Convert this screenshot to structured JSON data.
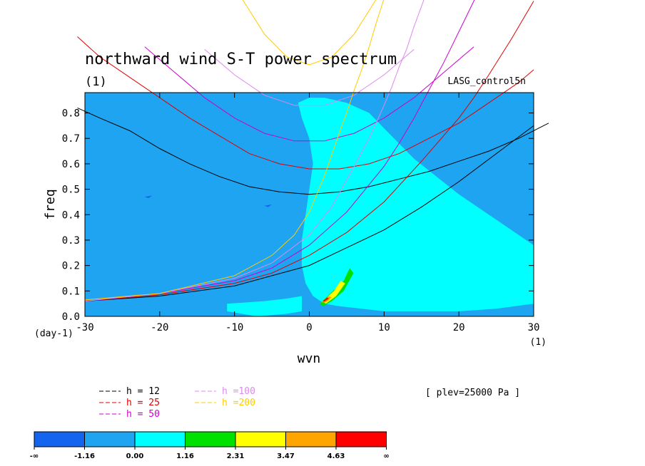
{
  "chart_data": {
    "type": "heatmap",
    "title": "northward wind S-T power spectrum",
    "subtitle": "(1)",
    "source_label": "LASG_control5n",
    "level_label": "[ plev=25000 Pa ]",
    "xlabel": "wvn",
    "ylabel": "freq",
    "x_unit_label": "(1)",
    "y_unit_label": "(day-1)",
    "xlim": [
      -30,
      30
    ],
    "ylim": [
      0,
      0.88
    ],
    "x_ticks": [
      {
        "v": -30,
        "t": "-30"
      },
      {
        "v": -20,
        "t": "-20"
      },
      {
        "v": -10,
        "t": "-10"
      },
      {
        "v": 0,
        "t": "0"
      },
      {
        "v": 10,
        "t": "10"
      },
      {
        "v": 20,
        "t": "20"
      },
      {
        "v": 30,
        "t": "30"
      }
    ],
    "y_ticks": [
      {
        "v": 0.0,
        "t": "0.0"
      },
      {
        "v": 0.1,
        "t": "0.1"
      },
      {
        "v": 0.2,
        "t": "0.2"
      },
      {
        "v": 0.3,
        "t": "0.3"
      },
      {
        "v": 0.4,
        "t": "0.4"
      },
      {
        "v": 0.5,
        "t": "0.5"
      },
      {
        "v": 0.6,
        "t": "0.6"
      },
      {
        "v": 0.7,
        "t": "0.7"
      },
      {
        "v": 0.8,
        "t": "0.8"
      }
    ],
    "background_color": "#1ea4f0",
    "colorbar": {
      "labels": [
        "-∞",
        "-1.16",
        "0.00",
        "1.16",
        "2.31",
        "3.47",
        "4.63",
        "∞"
      ],
      "colors": [
        "#1464f0",
        "#1ea4f0",
        "#00ffff",
        "#00e100",
        "#ffff00",
        "#ffa500",
        "#ff0000"
      ]
    },
    "contour_regions": [
      {
        "level": 2,
        "points": [
          [
            -1.5,
            0.84
          ],
          [
            0,
            0.86
          ],
          [
            2,
            0.86
          ],
          [
            5,
            0.84
          ],
          [
            8,
            0.8
          ],
          [
            10,
            0.74
          ],
          [
            12,
            0.68
          ],
          [
            14,
            0.62
          ],
          [
            17,
            0.55
          ],
          [
            20,
            0.48
          ],
          [
            23,
            0.42
          ],
          [
            26,
            0.36
          ],
          [
            29,
            0.3
          ],
          [
            30,
            0.28
          ],
          [
            30,
            0.05
          ],
          [
            25,
            0.03
          ],
          [
            20,
            0.02
          ],
          [
            14,
            0.02
          ],
          [
            10,
            0.02
          ],
          [
            7,
            0.03
          ],
          [
            4,
            0.04
          ],
          [
            2,
            0.05
          ],
          [
            0.5,
            0.08
          ],
          [
            -0.5,
            0.13
          ],
          [
            -1,
            0.2
          ],
          [
            -1,
            0.3
          ],
          [
            -0.5,
            0.4
          ],
          [
            0,
            0.5
          ],
          [
            0.5,
            0.6
          ],
          [
            0,
            0.7
          ],
          [
            -1,
            0.78
          ]
        ]
      },
      {
        "level": 2,
        "points": [
          [
            -11,
            0.05
          ],
          [
            -6,
            0.06
          ],
          [
            -3,
            0.07
          ],
          [
            -1,
            0.08
          ],
          [
            -1,
            0.02
          ],
          [
            -3,
            0.01
          ],
          [
            -7,
            0.0
          ],
          [
            -11,
            0.02
          ]
        ]
      },
      {
        "level": 3,
        "points": [
          [
            1.4,
            0.05
          ],
          [
            2.8,
            0.09
          ],
          [
            4.6,
            0.14
          ],
          [
            5.4,
            0.19
          ],
          [
            5.9,
            0.17
          ],
          [
            4.6,
            0.1
          ],
          [
            3,
            0.06
          ],
          [
            1.8,
            0.04
          ]
        ]
      },
      {
        "level": 4,
        "points": [
          [
            1.8,
            0.06
          ],
          [
            3.3,
            0.1
          ],
          [
            4.2,
            0.14
          ],
          [
            4.8,
            0.13
          ],
          [
            3.6,
            0.08
          ],
          [
            2.2,
            0.05
          ]
        ]
      },
      {
        "level": 5,
        "points": [
          [
            1.6,
            0.055
          ],
          [
            2.6,
            0.08
          ],
          [
            3,
            0.075
          ],
          [
            2.2,
            0.055
          ]
        ]
      },
      {
        "level": 6,
        "points": [
          [
            1.8,
            0.06
          ],
          [
            2.4,
            0.075
          ],
          [
            2.6,
            0.07
          ],
          [
            2,
            0.058
          ]
        ]
      },
      {
        "level": 0,
        "points": [
          [
            -22,
            0.47
          ],
          [
            -21,
            0.475
          ],
          [
            -21.5,
            0.465
          ]
        ]
      },
      {
        "level": 0,
        "points": [
          [
            -6,
            0.435
          ],
          [
            -5,
            0.44
          ],
          [
            -5.5,
            0.43
          ]
        ]
      }
    ],
    "legend": [
      {
        "label": "h = 12",
        "color": "#000000"
      },
      {
        "label": "h = 25",
        "color": "#e00000"
      },
      {
        "label": "h = 50",
        "color": "#cc00cc"
      },
      {
        "label": "h =100",
        "color": "#dd88ee"
      },
      {
        "label": "h =200",
        "color": "#ffcc00"
      }
    ],
    "dispersion_curves": [
      {
        "family": "ER",
        "h": 12,
        "color": "#000000",
        "points": [
          [
            -31,
            0.82
          ],
          [
            -28,
            0.78
          ],
          [
            -24,
            0.73
          ],
          [
            -20,
            0.66
          ],
          [
            -16,
            0.6
          ],
          [
            -12,
            0.55
          ],
          [
            -8,
            0.51
          ],
          [
            -4,
            0.49
          ],
          [
            0,
            0.48
          ],
          [
            4,
            0.49
          ],
          [
            8,
            0.51
          ],
          [
            12,
            0.54
          ],
          [
            16,
            0.57
          ],
          [
            20,
            0.61
          ],
          [
            24,
            0.65
          ],
          [
            28,
            0.7
          ],
          [
            32,
            0.76
          ]
        ]
      },
      {
        "family": "ER",
        "h": 25,
        "color": "#e00000",
        "points": [
          [
            -31,
            1.1
          ],
          [
            -28,
            1.02
          ],
          [
            -24,
            0.94
          ],
          [
            -20,
            0.86
          ],
          [
            -16,
            0.78
          ],
          [
            -12,
            0.71
          ],
          [
            -8,
            0.64
          ],
          [
            -4,
            0.6
          ],
          [
            0,
            0.58
          ],
          [
            4,
            0.58
          ],
          [
            8,
            0.6
          ],
          [
            12,
            0.64
          ],
          [
            16,
            0.7
          ],
          [
            20,
            0.76
          ],
          [
            24,
            0.84
          ],
          [
            28,
            0.92
          ],
          [
            30,
            0.97
          ]
        ]
      },
      {
        "family": "ER",
        "h": 50,
        "color": "#cc00cc",
        "points": [
          [
            -22,
            1.06
          ],
          [
            -18,
            0.96
          ],
          [
            -14,
            0.86
          ],
          [
            -10,
            0.78
          ],
          [
            -6,
            0.72
          ],
          [
            -2,
            0.69
          ],
          [
            2,
            0.69
          ],
          [
            6,
            0.72
          ],
          [
            10,
            0.78
          ],
          [
            14,
            0.86
          ],
          [
            18,
            0.96
          ],
          [
            22,
            1.06
          ]
        ]
      },
      {
        "family": "ER",
        "h": 100,
        "color": "#dd88ee",
        "points": [
          [
            -14,
            1.05
          ],
          [
            -10,
            0.95
          ],
          [
            -6,
            0.87
          ],
          [
            -2,
            0.83
          ],
          [
            2,
            0.83
          ],
          [
            6,
            0.87
          ],
          [
            10,
            0.95
          ],
          [
            14,
            1.05
          ]
        ]
      },
      {
        "family": "ER",
        "h": 200,
        "color": "#ffcc00",
        "points": [
          [
            -9,
            1.25
          ],
          [
            -6,
            1.11
          ],
          [
            -3,
            1.02
          ],
          [
            0,
            0.99
          ],
          [
            3,
            1.02
          ],
          [
            6,
            1.11
          ],
          [
            9,
            1.25
          ]
        ]
      },
      {
        "family": "MRG",
        "h": 12,
        "color": "#000000",
        "points": [
          [
            -30,
            0.06
          ],
          [
            -20,
            0.08
          ],
          [
            -10,
            0.12
          ],
          [
            -5,
            0.16
          ],
          [
            0,
            0.2
          ],
          [
            5,
            0.27
          ],
          [
            10,
            0.34
          ],
          [
            15,
            0.43
          ],
          [
            20,
            0.53
          ],
          [
            25,
            0.64
          ],
          [
            30,
            0.75
          ]
        ]
      },
      {
        "family": "MRG",
        "h": 25,
        "color": "#e00000",
        "points": [
          [
            -30,
            0.06
          ],
          [
            -20,
            0.085
          ],
          [
            -10,
            0.13
          ],
          [
            -5,
            0.17
          ],
          [
            0,
            0.24
          ],
          [
            5,
            0.33
          ],
          [
            10,
            0.45
          ],
          [
            15,
            0.61
          ],
          [
            20,
            0.78
          ],
          [
            22,
            0.86
          ],
          [
            24,
            0.95
          ],
          [
            27,
            1.09
          ],
          [
            30,
            1.24
          ]
        ]
      },
      {
        "family": "MRG",
        "h": 50,
        "color": "#cc00cc",
        "points": [
          [
            -30,
            0.06
          ],
          [
            -20,
            0.09
          ],
          [
            -10,
            0.14
          ],
          [
            -5,
            0.19
          ],
          [
            0,
            0.28
          ],
          [
            5,
            0.41
          ],
          [
            10,
            0.59
          ],
          [
            12,
            0.68
          ],
          [
            14,
            0.78
          ],
          [
            16,
            0.89
          ],
          [
            18,
            1.0
          ],
          [
            20,
            1.12
          ],
          [
            22,
            1.24
          ],
          [
            24,
            1.37
          ],
          [
            26,
            1.5
          ]
        ]
      },
      {
        "family": "MRG",
        "h": 100,
        "color": "#dd88ee",
        "points": [
          [
            -30,
            0.06
          ],
          [
            -20,
            0.09
          ],
          [
            -10,
            0.15
          ],
          [
            -5,
            0.21
          ],
          [
            0,
            0.32
          ],
          [
            3,
            0.43
          ],
          [
            6,
            0.59
          ],
          [
            8,
            0.7
          ],
          [
            10,
            0.83
          ],
          [
            11,
            0.9
          ],
          [
            12,
            0.98
          ],
          [
            13,
            1.05
          ],
          [
            14,
            1.14
          ],
          [
            15,
            1.22
          ],
          [
            16,
            1.3
          ]
        ]
      },
      {
        "family": "MRG",
        "h": 200,
        "color": "#ffcc00",
        "points": [
          [
            -30,
            0.065
          ],
          [
            -20,
            0.09
          ],
          [
            -10,
            0.16
          ],
          [
            -5,
            0.24
          ],
          [
            -2,
            0.32
          ],
          [
            0,
            0.41
          ],
          [
            2,
            0.55
          ],
          [
            4,
            0.72
          ],
          [
            5,
            0.8
          ],
          [
            6,
            0.89
          ],
          [
            7,
            0.97
          ],
          [
            8,
            1.06
          ],
          [
            9,
            1.16
          ],
          [
            10,
            1.25
          ],
          [
            11,
            1.33
          ]
        ]
      }
    ]
  }
}
